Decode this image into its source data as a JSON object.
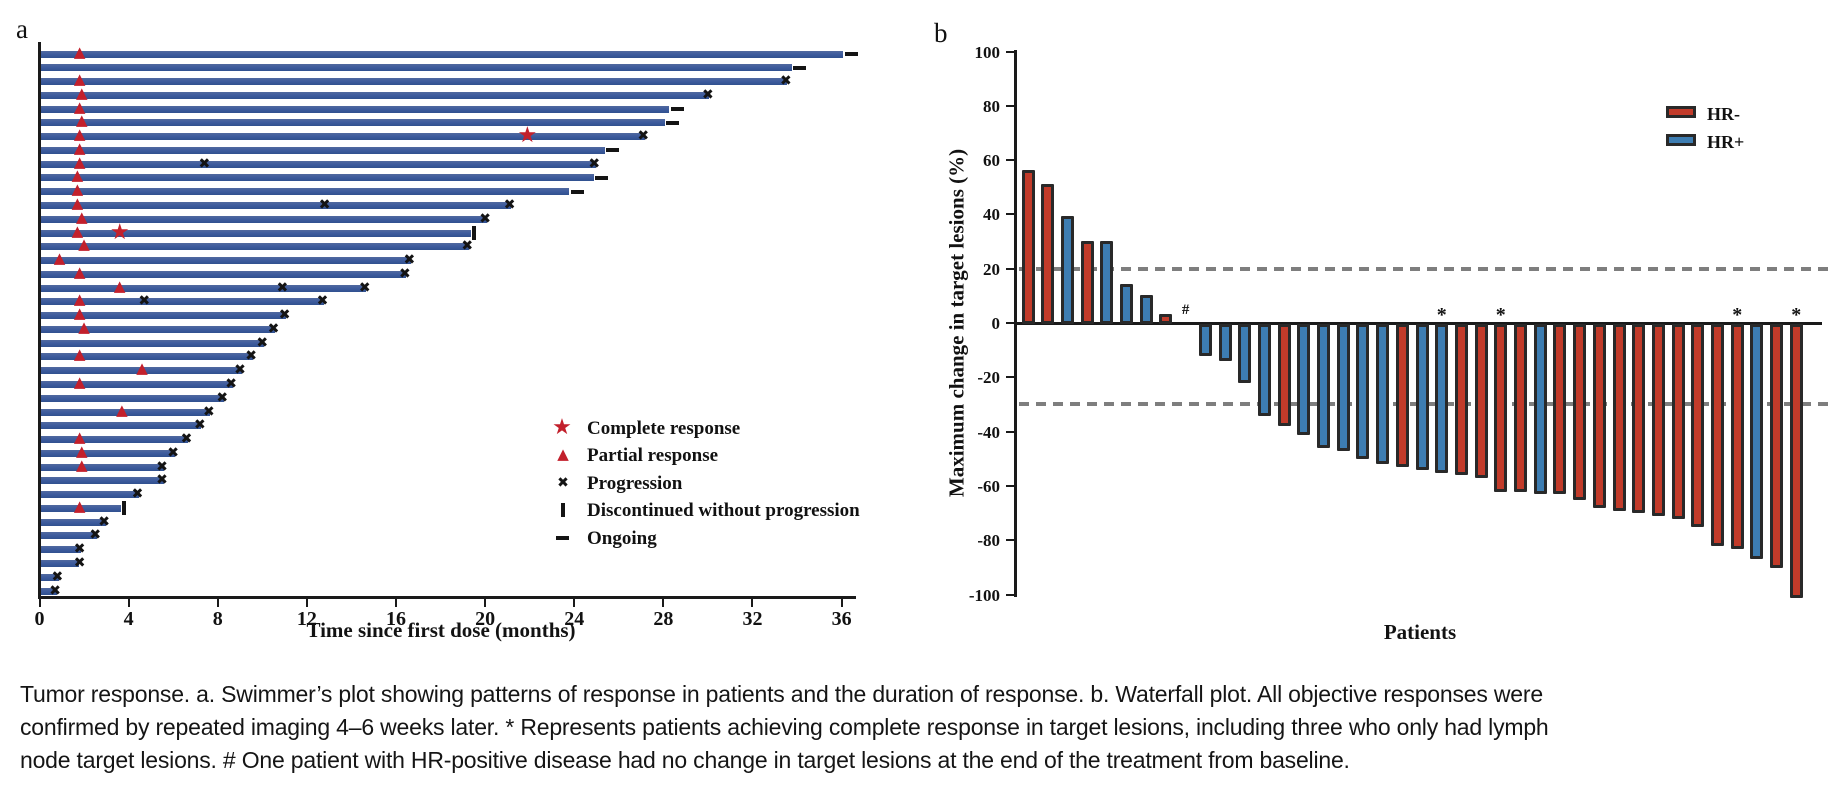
{
  "figure": {
    "panel_a_label": "a",
    "panel_b_label": "b",
    "caption_lines": [
      "Tumor response. a. Swimmer’s plot showing patterns of response in patients and the duration of response. b. Waterfall plot. All objective responses were",
      "confirmed by repeated imaging 4–6 weeks later. * Represents patients achieving complete response in target lesions, including three who only had lymph",
      "node target lesions. # One patient with HR-positive disease had no change in target lesions at the end of the treatment from baseline."
    ]
  },
  "chart_data": [
    {
      "type": "bar",
      "name": "swimmer-plot",
      "orientation": "horizontal",
      "xlabel": "Time since first dose (months)",
      "xlim": [
        0,
        37
      ],
      "xticks": [
        0,
        4,
        8,
        12,
        16,
        20,
        24,
        28,
        32,
        36
      ],
      "grid": false,
      "bar_color": "#3e5c9e",
      "marker_red": "#c2202c",
      "marker_black": "#141414",
      "legend_position": "lower-right-inside",
      "legend": [
        {
          "symbol": "star",
          "label": "Complete response"
        },
        {
          "symbol": "triangle",
          "label": "Partial response"
        },
        {
          "symbol": "x",
          "label": "Progression"
        },
        {
          "symbol": "vertical-bar",
          "label": "Discontinued without progression"
        },
        {
          "symbol": "dash",
          "label": "Ongoing"
        }
      ],
      "patients": [
        {
          "duration": 36.0,
          "markers": [
            {
              "type": "triangle",
              "month": 1.8
            },
            {
              "type": "dash",
              "month": 36.0
            }
          ]
        },
        {
          "duration": 33.7,
          "markers": [
            {
              "type": "dash",
              "month": 33.7
            }
          ]
        },
        {
          "duration": 33.5,
          "markers": [
            {
              "type": "triangle",
              "month": 1.8
            },
            {
              "type": "x",
              "month": 33.5
            }
          ]
        },
        {
          "duration": 30.0,
          "markers": [
            {
              "type": "triangle",
              "month": 1.9
            },
            {
              "type": "x",
              "month": 30.0
            }
          ]
        },
        {
          "duration": 28.2,
          "markers": [
            {
              "type": "triangle",
              "month": 1.8
            },
            {
              "type": "dash",
              "month": 28.2
            }
          ]
        },
        {
          "duration": 28.0,
          "markers": [
            {
              "type": "triangle",
              "month": 1.9
            },
            {
              "type": "dash",
              "month": 28.0
            }
          ]
        },
        {
          "duration": 27.1,
          "markers": [
            {
              "type": "triangle",
              "month": 1.8
            },
            {
              "type": "star",
              "month": 21.9
            },
            {
              "type": "x",
              "month": 27.1
            }
          ]
        },
        {
          "duration": 25.3,
          "markers": [
            {
              "type": "triangle",
              "month": 1.8
            },
            {
              "type": "dash",
              "month": 25.3
            }
          ]
        },
        {
          "duration": 24.9,
          "markers": [
            {
              "type": "triangle",
              "month": 1.8
            },
            {
              "type": "x",
              "month": 7.4
            },
            {
              "type": "x",
              "month": 24.9
            }
          ]
        },
        {
          "duration": 24.8,
          "markers": [
            {
              "type": "triangle",
              "month": 1.7
            },
            {
              "type": "dash",
              "month": 24.8
            }
          ]
        },
        {
          "duration": 23.7,
          "markers": [
            {
              "type": "triangle",
              "month": 1.7
            },
            {
              "type": "dash",
              "month": 23.7
            }
          ]
        },
        {
          "duration": 21.1,
          "markers": [
            {
              "type": "triangle",
              "month": 1.7
            },
            {
              "type": "x",
              "month": 12.8
            },
            {
              "type": "x",
              "month": 21.1
            }
          ]
        },
        {
          "duration": 20.0,
          "markers": [
            {
              "type": "triangle",
              "month": 1.9
            },
            {
              "type": "x",
              "month": 20.0
            }
          ]
        },
        {
          "duration": 19.3,
          "markers": [
            {
              "type": "triangle",
              "month": 1.7
            },
            {
              "type": "star",
              "month": 3.6
            },
            {
              "type": "discontinued",
              "month": 19.3
            }
          ]
        },
        {
          "duration": 19.2,
          "markers": [
            {
              "type": "triangle",
              "month": 2.0
            },
            {
              "type": "x",
              "month": 19.2
            }
          ]
        },
        {
          "duration": 16.6,
          "markers": [
            {
              "type": "triangle",
              "month": 0.9
            },
            {
              "type": "x",
              "month": 16.6
            }
          ]
        },
        {
          "duration": 16.4,
          "markers": [
            {
              "type": "triangle",
              "month": 1.8
            },
            {
              "type": "x",
              "month": 16.4
            }
          ]
        },
        {
          "duration": 14.6,
          "markers": [
            {
              "type": "triangle",
              "month": 3.6
            },
            {
              "type": "x",
              "month": 10.9
            },
            {
              "type": "x",
              "month": 14.6
            }
          ]
        },
        {
          "duration": 12.7,
          "markers": [
            {
              "type": "triangle",
              "month": 1.8
            },
            {
              "type": "x",
              "month": 4.7
            },
            {
              "type": "x",
              "month": 12.7
            }
          ]
        },
        {
          "duration": 11.0,
          "markers": [
            {
              "type": "triangle",
              "month": 1.8
            },
            {
              "type": "x",
              "month": 11.0
            }
          ]
        },
        {
          "duration": 10.5,
          "markers": [
            {
              "type": "triangle",
              "month": 2.0
            },
            {
              "type": "x",
              "month": 10.5
            }
          ]
        },
        {
          "duration": 10.0,
          "markers": [
            {
              "type": "x",
              "month": 10.0
            }
          ]
        },
        {
          "duration": 9.5,
          "markers": [
            {
              "type": "triangle",
              "month": 1.8
            },
            {
              "type": "x",
              "month": 9.5
            }
          ]
        },
        {
          "duration": 9.0,
          "markers": [
            {
              "type": "triangle",
              "month": 4.6
            },
            {
              "type": "x",
              "month": 9.0
            }
          ]
        },
        {
          "duration": 8.6,
          "markers": [
            {
              "type": "triangle",
              "month": 1.8
            },
            {
              "type": "x",
              "month": 8.6
            }
          ]
        },
        {
          "duration": 8.2,
          "markers": [
            {
              "type": "x",
              "month": 8.2
            }
          ]
        },
        {
          "duration": 7.6,
          "markers": [
            {
              "type": "triangle",
              "month": 3.7
            },
            {
              "type": "x",
              "month": 7.6
            }
          ]
        },
        {
          "duration": 7.2,
          "markers": [
            {
              "type": "x",
              "month": 7.2
            }
          ]
        },
        {
          "duration": 6.6,
          "markers": [
            {
              "type": "triangle",
              "month": 1.8
            },
            {
              "type": "x",
              "month": 6.6
            }
          ]
        },
        {
          "duration": 6.0,
          "markers": [
            {
              "type": "triangle",
              "month": 1.9
            },
            {
              "type": "x",
              "month": 6.0
            }
          ]
        },
        {
          "duration": 5.5,
          "markers": [
            {
              "type": "triangle",
              "month": 1.9
            },
            {
              "type": "x",
              "month": 5.5
            }
          ]
        },
        {
          "duration": 5.5,
          "markers": [
            {
              "type": "x",
              "month": 5.5
            }
          ]
        },
        {
          "duration": 4.4,
          "markers": [
            {
              "type": "x",
              "month": 4.4
            }
          ]
        },
        {
          "duration": 3.6,
          "markers": [
            {
              "type": "triangle",
              "month": 1.8
            },
            {
              "type": "discontinued",
              "month": 3.6
            }
          ]
        },
        {
          "duration": 2.9,
          "markers": [
            {
              "type": "x",
              "month": 2.9
            }
          ]
        },
        {
          "duration": 2.5,
          "markers": [
            {
              "type": "x",
              "month": 2.5
            }
          ]
        },
        {
          "duration": 1.8,
          "markers": [
            {
              "type": "x",
              "month": 1.8
            }
          ]
        },
        {
          "duration": 1.7,
          "markers": [
            {
              "type": "x",
              "month": 1.8
            }
          ]
        },
        {
          "duration": 0.8,
          "markers": [
            {
              "type": "x",
              "month": 0.8
            }
          ]
        },
        {
          "duration": 0.7,
          "markers": [
            {
              "type": "x",
              "month": 0.7
            }
          ]
        }
      ]
    },
    {
      "type": "bar",
      "name": "waterfall-plot",
      "ylabel": "Maximum change in target lesions (%)",
      "xlabel": "Patients",
      "ylim": [
        -100,
        100
      ],
      "yticks": [
        100,
        80,
        60,
        40,
        20,
        0,
        -20,
        -40,
        -60,
        -80,
        -100
      ],
      "reference_lines": [
        20,
        -30
      ],
      "reference_line_color": "#7e7e7e",
      "grid": false,
      "legend_position": "upper-right-inside",
      "legend": [
        {
          "label": "HR-",
          "color": "#c23b2a"
        },
        {
          "label": "HR+",
          "color": "#3d7db2"
        }
      ],
      "annotation_star_meaning": "complete response in target lesions",
      "annotation_hash_meaning": "no change in target lesions from baseline",
      "bars": [
        {
          "value": 56,
          "group": "HR-"
        },
        {
          "value": 51,
          "group": "HR-"
        },
        {
          "value": 39,
          "group": "HR+"
        },
        {
          "value": 30,
          "group": "HR-"
        },
        {
          "value": 30,
          "group": "HR+"
        },
        {
          "value": 14,
          "group": "HR+"
        },
        {
          "value": 10,
          "group": "HR+"
        },
        {
          "value": 3,
          "group": "HR-"
        },
        {
          "value": 0,
          "group": "HR+",
          "annotation": "#"
        },
        {
          "value": -11,
          "group": "HR+"
        },
        {
          "value": -13,
          "group": "HR+"
        },
        {
          "value": -21,
          "group": "HR+"
        },
        {
          "value": -33,
          "group": "HR+"
        },
        {
          "value": -37,
          "group": "HR-"
        },
        {
          "value": -40,
          "group": "HR+"
        },
        {
          "value": -45,
          "group": "HR+"
        },
        {
          "value": -46,
          "group": "HR+"
        },
        {
          "value": -49,
          "group": "HR+"
        },
        {
          "value": -51,
          "group": "HR+"
        },
        {
          "value": -52,
          "group": "HR-"
        },
        {
          "value": -53,
          "group": "HR+"
        },
        {
          "value": -54,
          "group": "HR+",
          "annotation": "*"
        },
        {
          "value": -55,
          "group": "HR-"
        },
        {
          "value": -56,
          "group": "HR-"
        },
        {
          "value": -61,
          "group": "HR-",
          "annotation": "*"
        },
        {
          "value": -61,
          "group": "HR-"
        },
        {
          "value": -62,
          "group": "HR+"
        },
        {
          "value": -62,
          "group": "HR-"
        },
        {
          "value": -64,
          "group": "HR-"
        },
        {
          "value": -67,
          "group": "HR-"
        },
        {
          "value": -68,
          "group": "HR-"
        },
        {
          "value": -69,
          "group": "HR-"
        },
        {
          "value": -70,
          "group": "HR-"
        },
        {
          "value": -71,
          "group": "HR-"
        },
        {
          "value": -74,
          "group": "HR-"
        },
        {
          "value": -81,
          "group": "HR-"
        },
        {
          "value": -82,
          "group": "HR-",
          "annotation": "*"
        },
        {
          "value": -86,
          "group": "HR+"
        },
        {
          "value": -89,
          "group": "HR-"
        },
        {
          "value": -100,
          "group": "HR-",
          "annotation": "*"
        }
      ]
    }
  ]
}
